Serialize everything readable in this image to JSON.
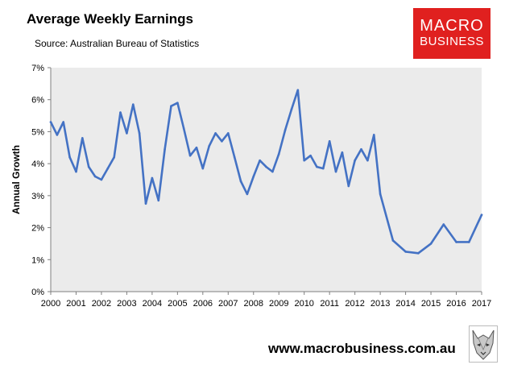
{
  "header": {
    "title": "Average Weekly Earnings",
    "subtitle": "Source: Australian Bureau of Statistics"
  },
  "logo": {
    "line1": "MACRO",
    "line2": "BUSINESS",
    "background_color": "#e0201f"
  },
  "footer": {
    "website": "www.macrobusiness.com.au",
    "wolf_logo_icon": "wolf-head-icon"
  },
  "chart_data": {
    "type": "line",
    "title": "Average Weekly Earnings",
    "subtitle": "Source: Australian Bureau of Statistics",
    "xlabel": "",
    "ylabel": "Annual Growth",
    "xlim": [
      2000,
      2017
    ],
    "ylim": [
      0,
      7
    ],
    "x_ticks": [
      "2000",
      "2001",
      "2002",
      "2003",
      "2004",
      "2005",
      "2006",
      "2007",
      "2008",
      "2009",
      "2010",
      "2011",
      "2012",
      "2013",
      "2014",
      "2015",
      "2016",
      "2017"
    ],
    "y_ticks": [
      "0%",
      "1%",
      "2%",
      "3%",
      "4%",
      "5%",
      "6%",
      "7%"
    ],
    "plot_background": "#ebebeb",
    "grid": false,
    "legend": "none",
    "line_color": "#4472c4",
    "series": [
      {
        "x": [
          2000.0,
          2000.25,
          2000.5,
          2000.75,
          2001.0,
          2001.25,
          2001.5,
          2001.75,
          2002.0,
          2002.25,
          2002.5,
          2002.75,
          2003.0,
          2003.25,
          2003.5,
          2003.75,
          2004.0,
          2004.25,
          2004.5,
          2004.75,
          2005.0,
          2005.25,
          2005.5,
          2005.75,
          2006.0,
          2006.25,
          2006.5,
          2006.75,
          2007.0,
          2007.25,
          2007.5,
          2007.75,
          2008.0,
          2008.25,
          2008.5,
          2008.75,
          2009.0,
          2009.25,
          2009.5,
          2009.75,
          2010.0,
          2010.25,
          2010.5,
          2010.75,
          2011.0,
          2011.25,
          2011.5,
          2011.75,
          2012.0,
          2012.25,
          2012.5,
          2012.75,
          2013.0,
          2013.5,
          2014.0,
          2014.5,
          2015.0,
          2015.5,
          2016.0,
          2016.5,
          2017.0
        ],
        "y": [
          5.3,
          4.9,
          5.3,
          4.2,
          3.75,
          4.8,
          3.9,
          3.6,
          3.5,
          3.85,
          4.2,
          5.6,
          4.95,
          5.85,
          4.95,
          2.75,
          3.55,
          2.85,
          4.45,
          5.8,
          5.9,
          5.1,
          4.25,
          4.5,
          3.85,
          4.55,
          4.95,
          4.7,
          4.95,
          4.2,
          3.45,
          3.05,
          3.6,
          4.1,
          3.9,
          3.75,
          4.3,
          5.05,
          5.7,
          6.3,
          4.1,
          4.25,
          3.9,
          3.85,
          4.7,
          3.75,
          4.35,
          3.3,
          4.1,
          4.45,
          4.1,
          4.9,
          3.05,
          1.6,
          1.25,
          1.2,
          1.5,
          2.1,
          1.55,
          1.55,
          2.4
        ]
      }
    ]
  }
}
